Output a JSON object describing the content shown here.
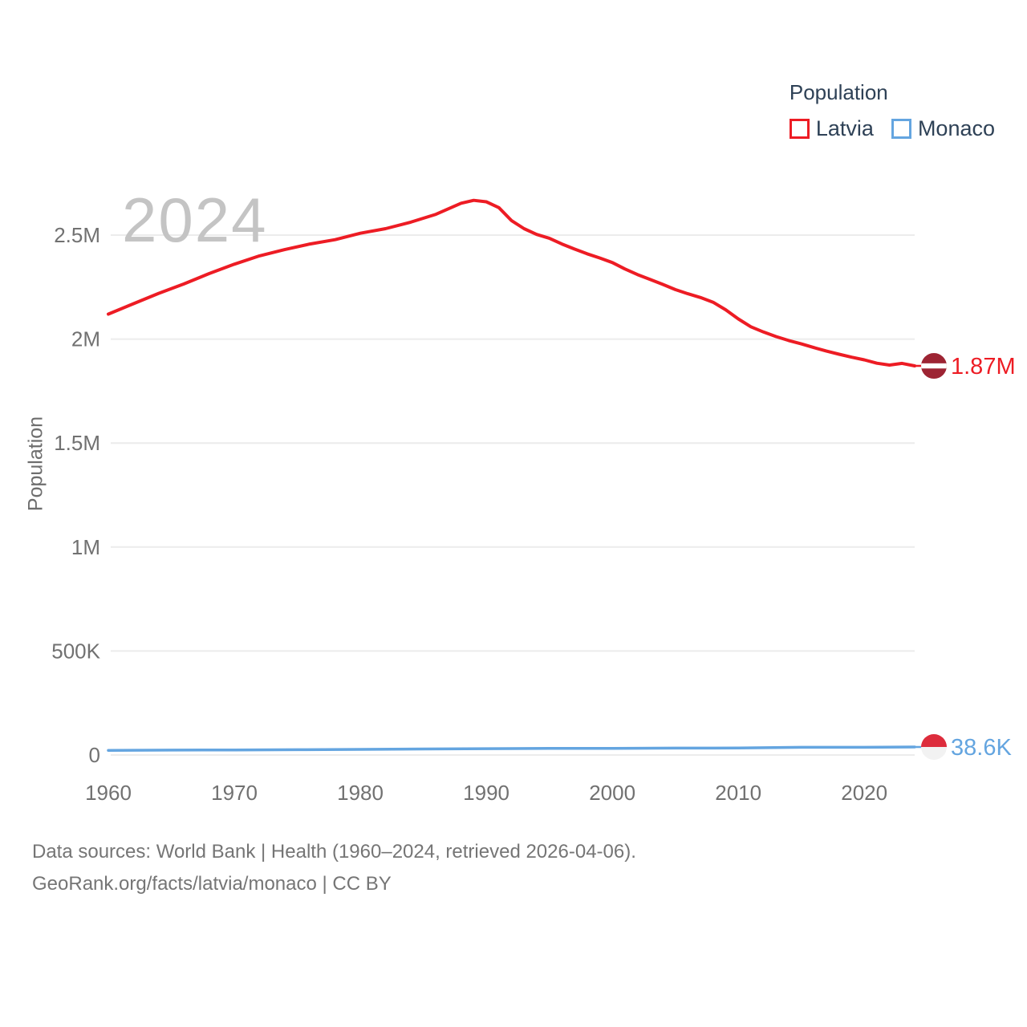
{
  "legend": {
    "title": "Population",
    "items": [
      {
        "label": "Latvia"
      },
      {
        "label": "Monaco"
      }
    ]
  },
  "chart": {
    "watermark": "2024",
    "ylabel": "Population"
  },
  "footer": {
    "line1": "Data sources: World Bank | Health (1960–2024, retrieved 2026-04-06).",
    "line2": "GeoRank.org/facts/latvia/monaco | CC BY"
  },
  "chart_data": {
    "type": "line",
    "title": "",
    "xlabel": "",
    "ylabel": "Population",
    "xlim": [
      1960,
      2024
    ],
    "ylim": [
      0,
      2500000
    ],
    "grid": "horizontal",
    "legend_position": "top-right",
    "watermark": "2024",
    "y_ticks": [
      {
        "value": 0,
        "label": "0"
      },
      {
        "value": 500000,
        "label": "500K"
      },
      {
        "value": 1000000,
        "label": "1M"
      },
      {
        "value": 1500000,
        "label": "1.5M"
      },
      {
        "value": 2000000,
        "label": "2M"
      },
      {
        "value": 2500000,
        "label": "2.5M"
      }
    ],
    "x_ticks": [
      {
        "value": 1960,
        "label": "1960"
      },
      {
        "value": 1970,
        "label": "1970"
      },
      {
        "value": 1980,
        "label": "1980"
      },
      {
        "value": 1990,
        "label": "1990"
      },
      {
        "value": 2000,
        "label": "2000"
      },
      {
        "value": 2010,
        "label": "2010"
      },
      {
        "value": 2020,
        "label": "2020"
      }
    ],
    "series": [
      {
        "name": "Latvia",
        "color": "#ed1c24",
        "line_width": 4,
        "end_label": "1.87M",
        "flag": "latvia",
        "flag_colors": {
          "main": "#9d2433",
          "stripe": "#ffffff"
        },
        "points": [
          [
            1960,
            2120000
          ],
          [
            1962,
            2170000
          ],
          [
            1964,
            2220000
          ],
          [
            1966,
            2265000
          ],
          [
            1968,
            2315000
          ],
          [
            1970,
            2360000
          ],
          [
            1972,
            2400000
          ],
          [
            1974,
            2430000
          ],
          [
            1976,
            2457000
          ],
          [
            1978,
            2478000
          ],
          [
            1980,
            2509000
          ],
          [
            1982,
            2531000
          ],
          [
            1984,
            2562000
          ],
          [
            1986,
            2600000
          ],
          [
            1988,
            2653000
          ],
          [
            1989,
            2667000
          ],
          [
            1990,
            2660000
          ],
          [
            1991,
            2632000
          ],
          [
            1992,
            2570000
          ],
          [
            1993,
            2531000
          ],
          [
            1994,
            2503000
          ],
          [
            1995,
            2485000
          ],
          [
            1996,
            2457000
          ],
          [
            1997,
            2433000
          ],
          [
            1998,
            2410000
          ],
          [
            1999,
            2390000
          ],
          [
            2000,
            2368000
          ],
          [
            2001,
            2337000
          ],
          [
            2002,
            2310000
          ],
          [
            2003,
            2287000
          ],
          [
            2004,
            2263000
          ],
          [
            2005,
            2238000
          ],
          [
            2006,
            2218000
          ],
          [
            2007,
            2200000
          ],
          [
            2008,
            2177000
          ],
          [
            2009,
            2141000
          ],
          [
            2010,
            2097000
          ],
          [
            2011,
            2059000
          ],
          [
            2012,
            2034000
          ],
          [
            2013,
            2012000
          ],
          [
            2014,
            1993000
          ],
          [
            2015,
            1977000
          ],
          [
            2016,
            1959000
          ],
          [
            2017,
            1942000
          ],
          [
            2018,
            1927000
          ],
          [
            2019,
            1913000
          ],
          [
            2020,
            1900000
          ],
          [
            2021,
            1884000
          ],
          [
            2022,
            1875000
          ],
          [
            2023,
            1883000
          ],
          [
            2024,
            1871000
          ]
        ]
      },
      {
        "name": "Monaco",
        "color": "#64a5e0",
        "line_width": 3.5,
        "end_label": "38.6K",
        "flag": "monaco",
        "flag_colors": {
          "top": "#dd2c3c",
          "bottom": "#f2f2f2"
        },
        "points": [
          [
            1960,
            22500
          ],
          [
            1965,
            23400
          ],
          [
            1970,
            24200
          ],
          [
            1975,
            25600
          ],
          [
            1980,
            27100
          ],
          [
            1985,
            29000
          ],
          [
            1990,
            30400
          ],
          [
            1995,
            31500
          ],
          [
            2000,
            32100
          ],
          [
            2005,
            33100
          ],
          [
            2010,
            33600
          ],
          [
            2015,
            37200
          ],
          [
            2020,
            36900
          ],
          [
            2024,
            38600
          ]
        ]
      }
    ]
  }
}
